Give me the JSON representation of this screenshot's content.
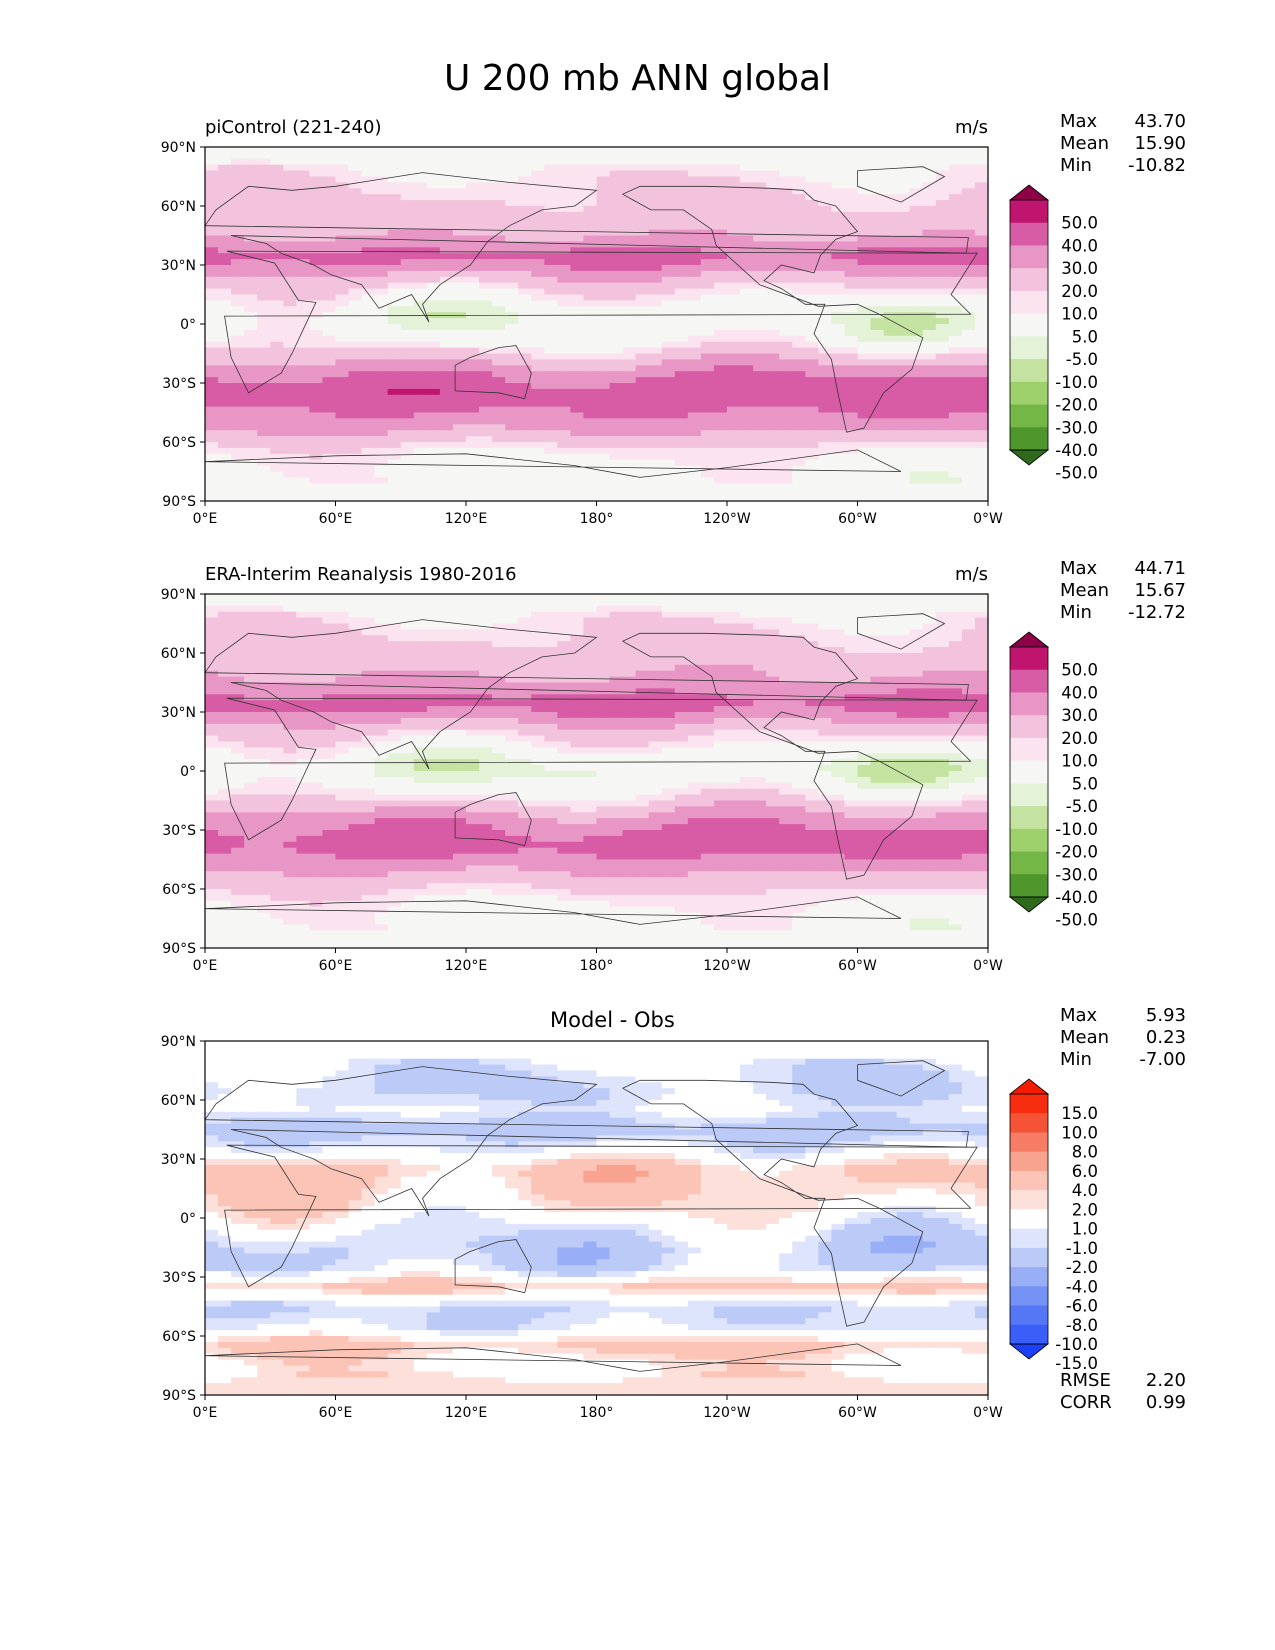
{
  "title": "U 200 mb ANN global",
  "colors": {
    "pos": [
      "#fbe4ef",
      "#f3c2dd",
      "#e896c6",
      "#d85ca5",
      "#c0156f",
      "#8d0048"
    ],
    "neg": [
      "#f6f6f4",
      "#e4f2d7",
      "#c4e3a0",
      "#9ed16b",
      "#74b746",
      "#4f962c",
      "#2f6a1c"
    ],
    "diffPos": [
      "#ffffff",
      "#fde0d9",
      "#fbc4b6",
      "#f8a38f",
      "#f67c63",
      "#f55336",
      "#f72d0f",
      "#f41d00"
    ],
    "diffNeg": [
      "#ffffff",
      "#dde4fb",
      "#bccaf8",
      "#98aef6",
      "#7592f5",
      "#5576f5",
      "#3a5ef7",
      "#1c3ff7"
    ]
  },
  "lon_ticks": [
    "0°E",
    "60°E",
    "120°E",
    "180°",
    "120°W",
    "60°W",
    "0°W"
  ],
  "lat_ticks": [
    "90°N",
    "60°N",
    "30°N",
    "0°",
    "30°S",
    "60°S",
    "90°S"
  ],
  "chart_data": [
    {
      "type": "heatmap",
      "panel_title": "piControl (221-240)",
      "units": "m/s",
      "stats": {
        "Max": "43.70",
        "Mean": "15.90",
        "Min": "-10.82"
      },
      "colorbar_ticks": [
        "50.0",
        "40.0",
        "30.0",
        "20.0",
        "10.0",
        "5.0",
        "-5.0",
        "-10.0",
        "-20.0",
        "-30.0",
        "-40.0",
        "-50.0"
      ],
      "zonal_profile": {
        "lat": [
          85,
          75,
          65,
          55,
          45,
          40,
          35,
          30,
          25,
          20,
          15,
          10,
          5,
          0,
          -5,
          -10,
          -15,
          -20,
          -25,
          -30,
          -35,
          -40,
          -45,
          -50,
          -55,
          -60,
          -65,
          -70,
          -75,
          -85
        ],
        "u": [
          2,
          7,
          11,
          14,
          19,
          26,
          33,
          29,
          20,
          12,
          6,
          1,
          -3,
          -3,
          -1,
          4,
          12,
          20,
          28,
          33,
          36,
          34,
          30,
          26,
          20,
          12,
          6,
          3,
          1,
          0
        ]
      }
    },
    {
      "type": "heatmap",
      "panel_title": "ERA-Interim Reanalysis 1980-2016",
      "units": "m/s",
      "stats": {
        "Max": "44.71",
        "Mean": "15.67",
        "Min": "-12.72"
      },
      "colorbar_ticks": [
        "50.0",
        "40.0",
        "30.0",
        "20.0",
        "10.0",
        "5.0",
        "-5.0",
        "-10.0",
        "-20.0",
        "-30.0",
        "-40.0",
        "-50.0"
      ],
      "zonal_profile": {
        "lat": [
          85,
          75,
          65,
          55,
          45,
          40,
          35,
          30,
          25,
          20,
          15,
          10,
          5,
          0,
          -5,
          -10,
          -15,
          -20,
          -25,
          -30,
          -35,
          -40,
          -45,
          -50,
          -55,
          -60,
          -65,
          -70,
          -75,
          -85
        ],
        "u": [
          2,
          8,
          12,
          16,
          22,
          28,
          35,
          30,
          21,
          13,
          7,
          1,
          -4,
          -5,
          -2,
          3,
          10,
          18,
          26,
          31,
          34,
          33,
          28,
          22,
          16,
          11,
          6,
          3,
          1,
          0
        ]
      }
    },
    {
      "type": "heatmap",
      "panel_title": "Model - Obs",
      "stats": {
        "Max": "5.93",
        "Mean": "0.23",
        "Min": "-7.00"
      },
      "colorbar_ticks": [
        "15.0",
        "10.0",
        "8.0",
        "6.0",
        "4.0",
        "2.0",
        "1.0",
        "-1.0",
        "-2.0",
        "-4.0",
        "-6.0",
        "-8.0",
        "-10.0",
        "-15.0"
      ],
      "extra_stats": {
        "RMSE": "2.20",
        "CORR": "0.99"
      },
      "zonal_profile": {
        "lat": [
          85,
          75,
          65,
          55,
          45,
          35,
          25,
          15,
          5,
          -5,
          -15,
          -25,
          -35,
          -45,
          -55,
          -65,
          -75,
          -85
        ],
        "u": [
          0,
          -1.5,
          -2,
          -1,
          -3,
          -1,
          2.5,
          2,
          1,
          -1,
          -2.5,
          -2,
          2.5,
          -2,
          -1.5,
          2.5,
          0.5,
          1.5
        ]
      }
    }
  ]
}
